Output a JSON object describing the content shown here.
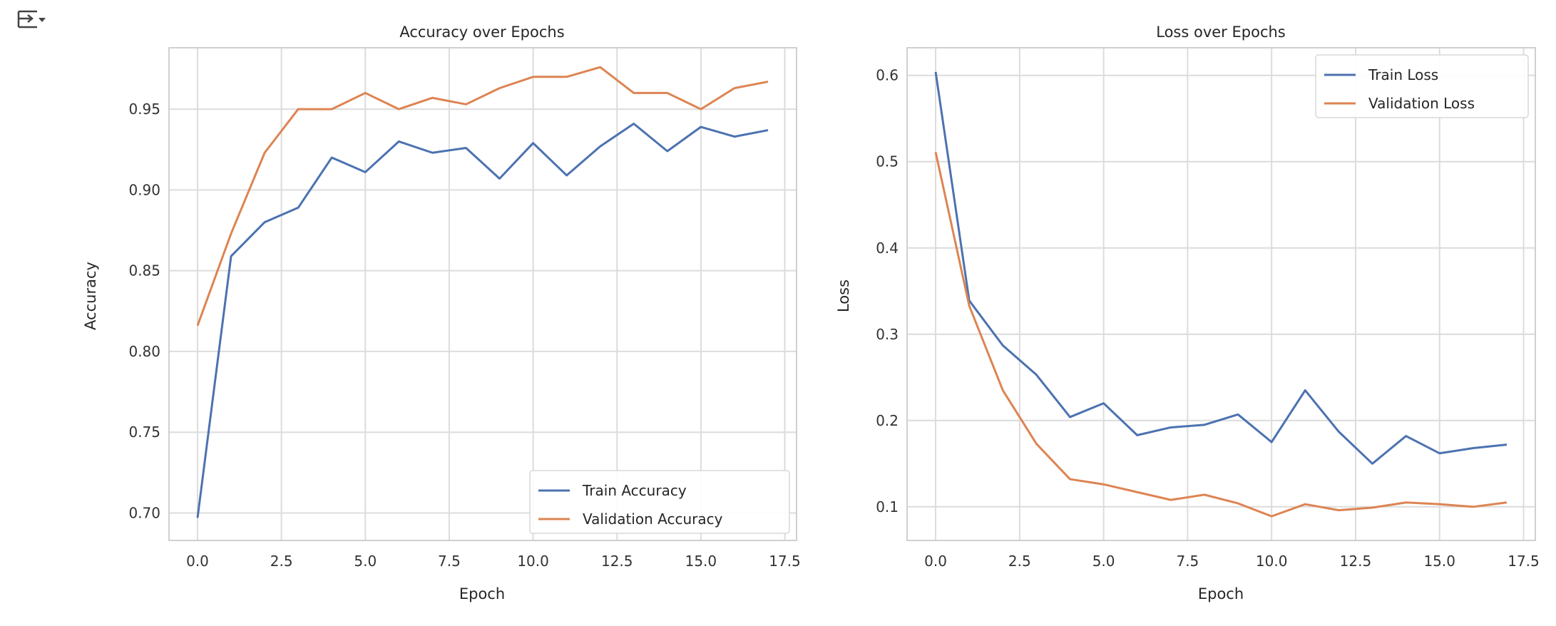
{
  "output_toggle": {
    "icon": "output-settings-icon"
  },
  "chart_data": [
    {
      "type": "line",
      "title": "Accuracy over Epochs",
      "xlabel": "Epoch",
      "ylabel": "Accuracy",
      "xlim": [
        -0.85,
        17.85
      ],
      "ylim": [
        0.683,
        0.988
      ],
      "xticks": [
        0.0,
        2.5,
        5.0,
        7.5,
        10.0,
        12.5,
        15.0,
        17.5
      ],
      "yticks": [
        0.7,
        0.75,
        0.8,
        0.85,
        0.9,
        0.95
      ],
      "xtick_labels": [
        "0.0",
        "2.5",
        "5.0",
        "7.5",
        "10.0",
        "12.5",
        "15.0",
        "17.5"
      ],
      "ytick_labels": [
        "0.70",
        "0.75",
        "0.80",
        "0.85",
        "0.90",
        "0.95"
      ],
      "grid": true,
      "legend_position": "lower-right",
      "x": [
        0,
        1,
        2,
        3,
        4,
        5,
        6,
        7,
        8,
        9,
        10,
        11,
        12,
        13,
        14,
        15,
        16,
        17
      ],
      "series": [
        {
          "name": "Train Accuracy",
          "color": "#4c72b0",
          "values": [
            0.697,
            0.859,
            0.88,
            0.889,
            0.92,
            0.911,
            0.93,
            0.923,
            0.926,
            0.907,
            0.929,
            0.909,
            0.927,
            0.941,
            0.924,
            0.939,
            0.933,
            0.937
          ]
        },
        {
          "name": "Validation Accuracy",
          "color": "#dd8452",
          "values": [
            0.816,
            0.873,
            0.923,
            0.95,
            0.95,
            0.96,
            0.95,
            0.957,
            0.953,
            0.963,
            0.97,
            0.97,
            0.976,
            0.96,
            0.96,
            0.95,
            0.963,
            0.967
          ]
        }
      ]
    },
    {
      "type": "line",
      "title": "Loss over Epochs",
      "xlabel": "Epoch",
      "ylabel": "Loss",
      "xlim": [
        -0.85,
        17.85
      ],
      "ylim": [
        0.061,
        0.632
      ],
      "xticks": [
        0.0,
        2.5,
        5.0,
        7.5,
        10.0,
        12.5,
        15.0,
        17.5
      ],
      "yticks": [
        0.1,
        0.2,
        0.3,
        0.4,
        0.5,
        0.6
      ],
      "xtick_labels": [
        "0.0",
        "2.5",
        "5.0",
        "7.5",
        "10.0",
        "12.5",
        "15.0",
        "17.5"
      ],
      "ytick_labels": [
        "0.1",
        "0.2",
        "0.3",
        "0.4",
        "0.5",
        "0.6"
      ],
      "grid": true,
      "legend_position": "upper-right",
      "x": [
        0,
        1,
        2,
        3,
        4,
        5,
        6,
        7,
        8,
        9,
        10,
        11,
        12,
        13,
        14,
        15,
        16,
        17
      ],
      "series": [
        {
          "name": "Train Loss",
          "color": "#4c72b0",
          "values": [
            0.604,
            0.339,
            0.287,
            0.253,
            0.204,
            0.22,
            0.183,
            0.192,
            0.195,
            0.207,
            0.175,
            0.235,
            0.187,
            0.15,
            0.182,
            0.162,
            0.168,
            0.172
          ]
        },
        {
          "name": "Validation Loss",
          "color": "#dd8452",
          "values": [
            0.511,
            0.333,
            0.235,
            0.173,
            0.132,
            0.126,
            0.117,
            0.108,
            0.114,
            0.104,
            0.089,
            0.103,
            0.096,
            0.099,
            0.105,
            0.103,
            0.1,
            0.105
          ]
        }
      ]
    }
  ]
}
